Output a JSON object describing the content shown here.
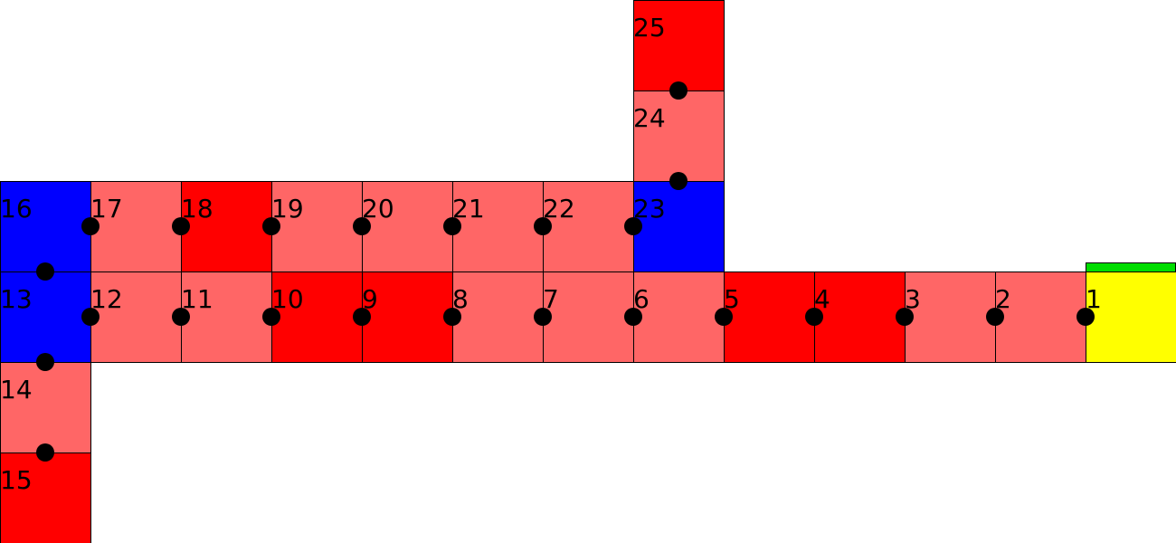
{
  "colors": {
    "light": "#ff6666",
    "red": "#ff0000",
    "blue": "#0000ff",
    "yellow": "#ffff00",
    "green": "#00dd00"
  },
  "cells": [
    {
      "label": "1",
      "color": "yellow"
    },
    {
      "label": "2",
      "color": "light"
    },
    {
      "label": "3",
      "color": "light"
    },
    {
      "label": "4",
      "color": "red"
    },
    {
      "label": "5",
      "color": "red"
    },
    {
      "label": "6",
      "color": "light"
    },
    {
      "label": "7",
      "color": "light"
    },
    {
      "label": "8",
      "color": "light"
    },
    {
      "label": "9",
      "color": "red"
    },
    {
      "label": "10",
      "color": "red"
    },
    {
      "label": "11",
      "color": "light"
    },
    {
      "label": "12",
      "color": "light"
    },
    {
      "label": "13",
      "color": "blue"
    },
    {
      "label": "14",
      "color": "light"
    },
    {
      "label": "15",
      "color": "red"
    },
    {
      "label": "16",
      "color": "blue"
    },
    {
      "label": "17",
      "color": "light"
    },
    {
      "label": "18",
      "color": "red"
    },
    {
      "label": "19",
      "color": "light"
    },
    {
      "label": "20",
      "color": "light"
    },
    {
      "label": "21",
      "color": "light"
    },
    {
      "label": "22",
      "color": "light"
    },
    {
      "label": "23",
      "color": "blue"
    },
    {
      "label": "24",
      "color": "light"
    },
    {
      "label": "25",
      "color": "red"
    }
  ],
  "start_marker": {
    "color": "green"
  }
}
